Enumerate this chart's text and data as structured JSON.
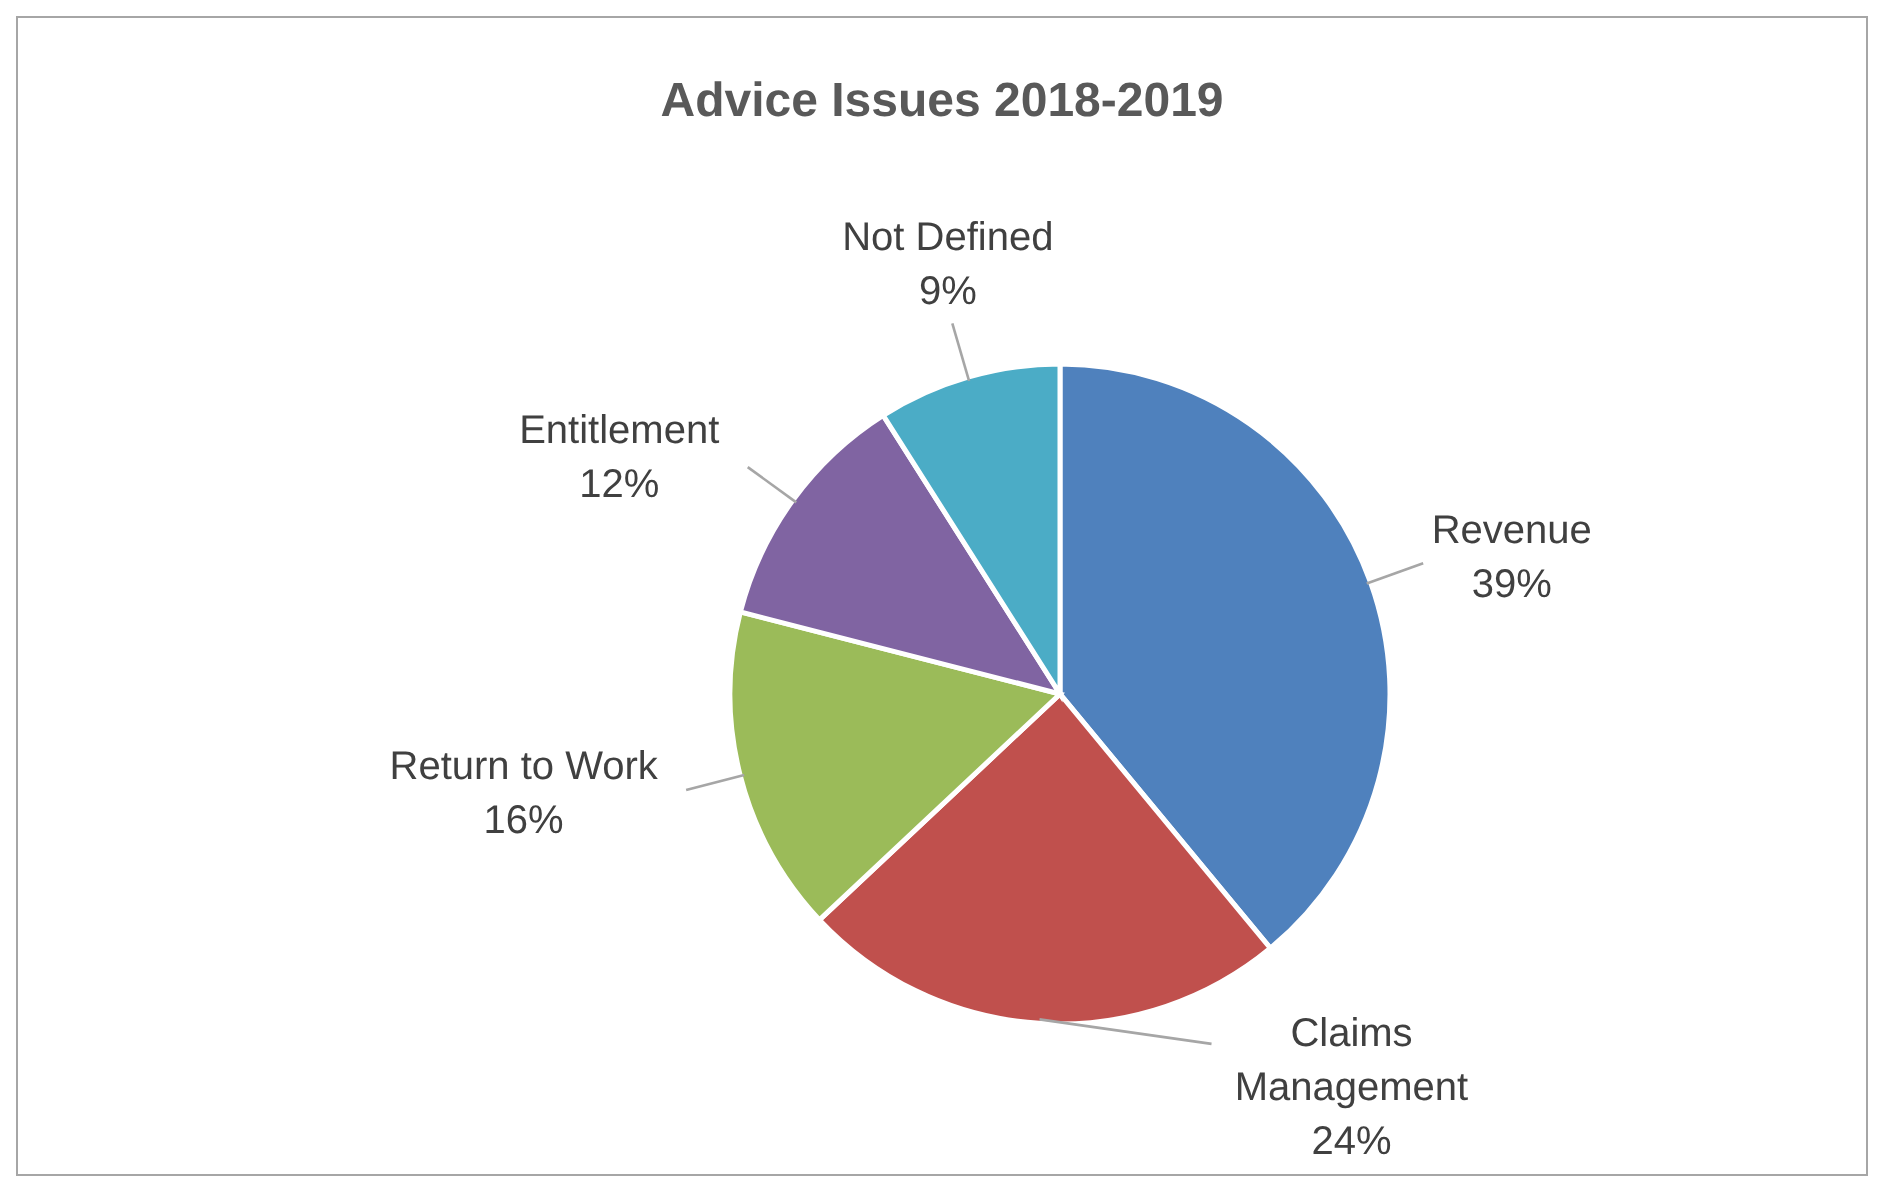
{
  "chart_data": {
    "type": "pie",
    "title": "Advice Issues 2018-2019",
    "categories": [
      "Revenue",
      "Claims Management",
      "Return to Work",
      "Entitlement",
      "Not Defined"
    ],
    "values": [
      39,
      24,
      16,
      12,
      9
    ],
    "value_labels": [
      "39%",
      "24%",
      "16%",
      "12%",
      "9%"
    ],
    "colors": [
      "#4f81bd",
      "#c0504d",
      "#9bbb59",
      "#8064a2",
      "#4bacc6"
    ],
    "legend": false
  }
}
